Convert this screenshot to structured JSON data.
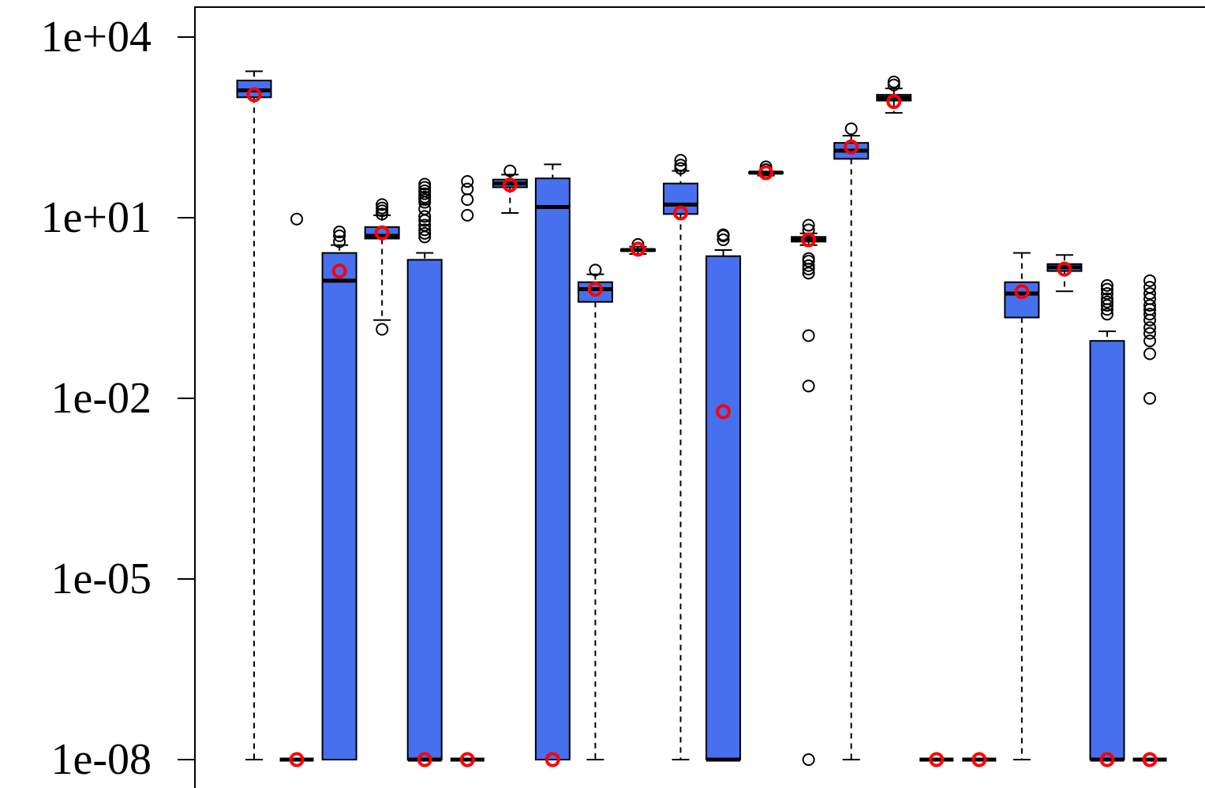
{
  "chart_data": {
    "type": "box",
    "title": "",
    "xlabel": "",
    "ylabel": "",
    "yscale": "log10",
    "ylim": [
      1e-08,
      20000
    ],
    "grid": false,
    "legend": "none",
    "yticks": [
      {
        "value": 10000,
        "label": "1e+04"
      },
      {
        "value": 10,
        "label": "1e+01"
      },
      {
        "value": 0.01,
        "label": "1e-02"
      },
      {
        "value": 1e-05,
        "label": "1e-05"
      },
      {
        "value": 1e-08,
        "label": "1e-08"
      }
    ],
    "colors": {
      "box_fill": "#4670ee",
      "median": "#000000",
      "mean_marker": "#ff0000",
      "outlier": "#000000",
      "axis": "#000000"
    },
    "boxes": [
      {
        "whislo": 1e-08,
        "q1": 1000,
        "med": 1300,
        "q3": 1900,
        "whishi": 2700,
        "mean": 1100,
        "fliers": []
      },
      {
        "whislo": 1e-08,
        "q1": 1e-08,
        "med": 1e-08,
        "q3": 1e-08,
        "whishi": 1e-08,
        "mean": 1e-08,
        "fliers": [
          9.5
        ]
      },
      {
        "whislo": 1e-08,
        "q1": 1e-08,
        "med": 0.9,
        "q3": 2.6,
        "whishi": 3.5,
        "mean": 1.3,
        "fliers": [
          4.0,
          5.0,
          5.8
        ]
      },
      {
        "whislo": 0.2,
        "q1": 4.5,
        "med": 5.0,
        "q3": 7.0,
        "whishi": 11.0,
        "mean": 5.6,
        "fliers": [
          0.14,
          11.5,
          13.0,
          14.5,
          16.5
        ]
      },
      {
        "whislo": 1e-08,
        "q1": 1e-08,
        "med": 1e-08,
        "q3": 2.0,
        "whishi": 2.6,
        "mean": 1e-08,
        "fliers": [
          4.8,
          5.5,
          6.3,
          7.5,
          9.0,
          10.5,
          14.0,
          18.0,
          20.0,
          22.0,
          25.0,
          28.0,
          32.0,
          36.0
        ]
      },
      {
        "whislo": 1e-08,
        "q1": 1e-08,
        "med": 1e-08,
        "q3": 1e-08,
        "whishi": 1e-08,
        "mean": 1e-08,
        "fliers": [
          11.0,
          20.0,
          30.0,
          40.0
        ]
      },
      {
        "whislo": 12.0,
        "q1": 32.0,
        "med": 37.0,
        "q3": 43.0,
        "whishi": 52.0,
        "mean": 35.0,
        "fliers": [
          60.0
        ]
      },
      {
        "whislo": 1e-08,
        "q1": 1e-08,
        "med": 15.0,
        "q3": 45.0,
        "whishi": 77.0,
        "mean": 1e-08,
        "fliers": []
      },
      {
        "whislo": 1e-08,
        "q1": 0.4,
        "med": 0.65,
        "q3": 0.85,
        "whishi": 1.15,
        "mean": 0.65,
        "fliers": [
          1.35
        ]
      },
      {
        "whislo": 2.5,
        "q1": 2.8,
        "med": 2.9,
        "q3": 3.0,
        "whishi": 3.3,
        "mean": 3.0,
        "fliers": [
          3.6
        ]
      },
      {
        "whislo": 1e-08,
        "q1": 11.5,
        "med": 16.5,
        "q3": 37.0,
        "whishi": 60.0,
        "mean": 12.0,
        "fliers": [
          66.0,
          75.0,
          90.0
        ]
      },
      {
        "whislo": 1e-08,
        "q1": 1e-08,
        "med": 1e-08,
        "q3": 2.3,
        "whishi": 2.9,
        "mean": 0.006,
        "fliers": [
          4.3,
          5.0,
          5.2
        ]
      },
      {
        "whislo": 50.0,
        "q1": 55.0,
        "med": 56.0,
        "q3": 57.0,
        "whishi": 58.0,
        "mean": 56.0,
        "fliers": [
          63.0,
          70.0
        ]
      },
      {
        "whislo": 3.5,
        "q1": 4.0,
        "med": 4.3,
        "q3": 4.8,
        "whishi": 5.5,
        "mean": 4.3,
        "fliers": [
          0.016,
          0.11,
          1.2,
          1.4,
          1.6,
          1.9,
          2.1,
          6.3,
          7.5,
          1e-08
        ]
      },
      {
        "whislo": 1e-08,
        "q1": 95.0,
        "med": 130.0,
        "q3": 175.0,
        "whishi": 230.0,
        "mean": 150.0,
        "fliers": [
          300.0
        ]
      },
      {
        "whislo": 550.0,
        "q1": 880.0,
        "med": 980.0,
        "q3": 1100.0,
        "whishi": 1400.0,
        "mean": 850.0,
        "fliers": [
          1600.0,
          1800.0
        ]
      },
      {
        "whislo": 1e-08,
        "q1": 1e-08,
        "med": 1e-08,
        "q3": 1e-08,
        "whishi": 1e-08,
        "mean": 1e-08,
        "fliers": []
      },
      {
        "whislo": 1e-08,
        "q1": 1e-08,
        "med": 1e-08,
        "q3": 1e-08,
        "whishi": 1e-08,
        "mean": 1e-08,
        "fliers": []
      },
      {
        "whislo": 1e-08,
        "q1": 0.22,
        "med": 0.55,
        "q3": 0.85,
        "whishi": 2.6,
        "mean": 0.59,
        "fliers": []
      },
      {
        "whislo": 0.6,
        "q1": 1.3,
        "med": 1.5,
        "q3": 1.7,
        "whishi": 2.4,
        "mean": 1.4,
        "fliers": []
      },
      {
        "whislo": 1e-08,
        "q1": 1e-08,
        "med": 1e-08,
        "q3": 0.09,
        "whishi": 0.13,
        "mean": 1e-08,
        "fliers": [
          0.25,
          0.3,
          0.35,
          0.4,
          0.45,
          0.55,
          0.65,
          0.75
        ]
      },
      {
        "whislo": 1e-08,
        "q1": 1e-08,
        "med": 1e-08,
        "q3": 1e-08,
        "whishi": 1e-08,
        "mean": 1e-08,
        "fliers": [
          0.01,
          0.055,
          0.09,
          0.12,
          0.15,
          0.2,
          0.25,
          0.3,
          0.35,
          0.45,
          0.55,
          0.7,
          0.9
        ]
      }
    ]
  }
}
